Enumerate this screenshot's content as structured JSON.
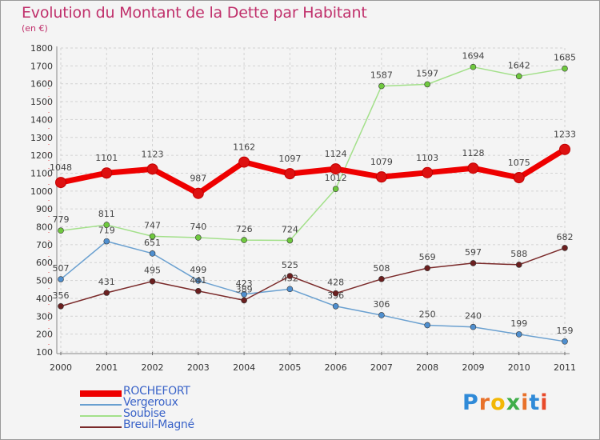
{
  "title": "Evolution du Montant de la Dette par Habitant",
  "subtitle": "(en €)",
  "brand": {
    "letters": [
      "P",
      "r",
      "o",
      "x",
      "i",
      "t",
      "i"
    ],
    "colors": [
      "#2f8ad8",
      "#e8712a",
      "#f2b705",
      "#3fae49",
      "#e8712a",
      "#2f8ad8",
      "#e84a2a"
    ]
  },
  "chart_data": {
    "type": "line",
    "title": "Evolution du Montant de la Dette par Habitant",
    "ylabel": "(en €)",
    "x": [
      "2000",
      "2001",
      "2002",
      "2003",
      "2004",
      "2005",
      "2006",
      "2007",
      "2008",
      "2009",
      "2010",
      "2011"
    ],
    "ylim": [
      100,
      1800
    ],
    "yticks": [
      100,
      200,
      300,
      400,
      500,
      600,
      700,
      800,
      900,
      1000,
      1100,
      1200,
      1300,
      1400,
      1500,
      1600,
      1700,
      1800
    ],
    "grid": true,
    "legend_position": "bottom-left",
    "series": [
      {
        "name": "ROCHEFORT",
        "color": "#ee0000",
        "marker": "#dd1111",
        "bold": true,
        "values": [
          1048,
          1101,
          1123,
          987,
          1162,
          1097,
          1124,
          1079,
          1103,
          1128,
          1075,
          1233
        ]
      },
      {
        "name": "Vergeroux",
        "color": "#6aa0d0",
        "marker": "#4f8fcf",
        "bold": false,
        "values": [
          507,
          719,
          651,
          499,
          423,
          452,
          356,
          306,
          250,
          240,
          199,
          159
        ]
      },
      {
        "name": "Soubise",
        "color": "#a3e08a",
        "marker": "#6fc93e",
        "bold": false,
        "values": [
          779,
          811,
          747,
          740,
          726,
          724,
          1012,
          1587,
          1597,
          1694,
          1642,
          1685
        ]
      },
      {
        "name": "Breuil-Magné",
        "color": "#7a2a2a",
        "marker": "#6b1f1f",
        "bold": false,
        "values": [
          356,
          431,
          495,
          441,
          389,
          525,
          428,
          508,
          569,
          597,
          588,
          682
        ]
      }
    ]
  }
}
